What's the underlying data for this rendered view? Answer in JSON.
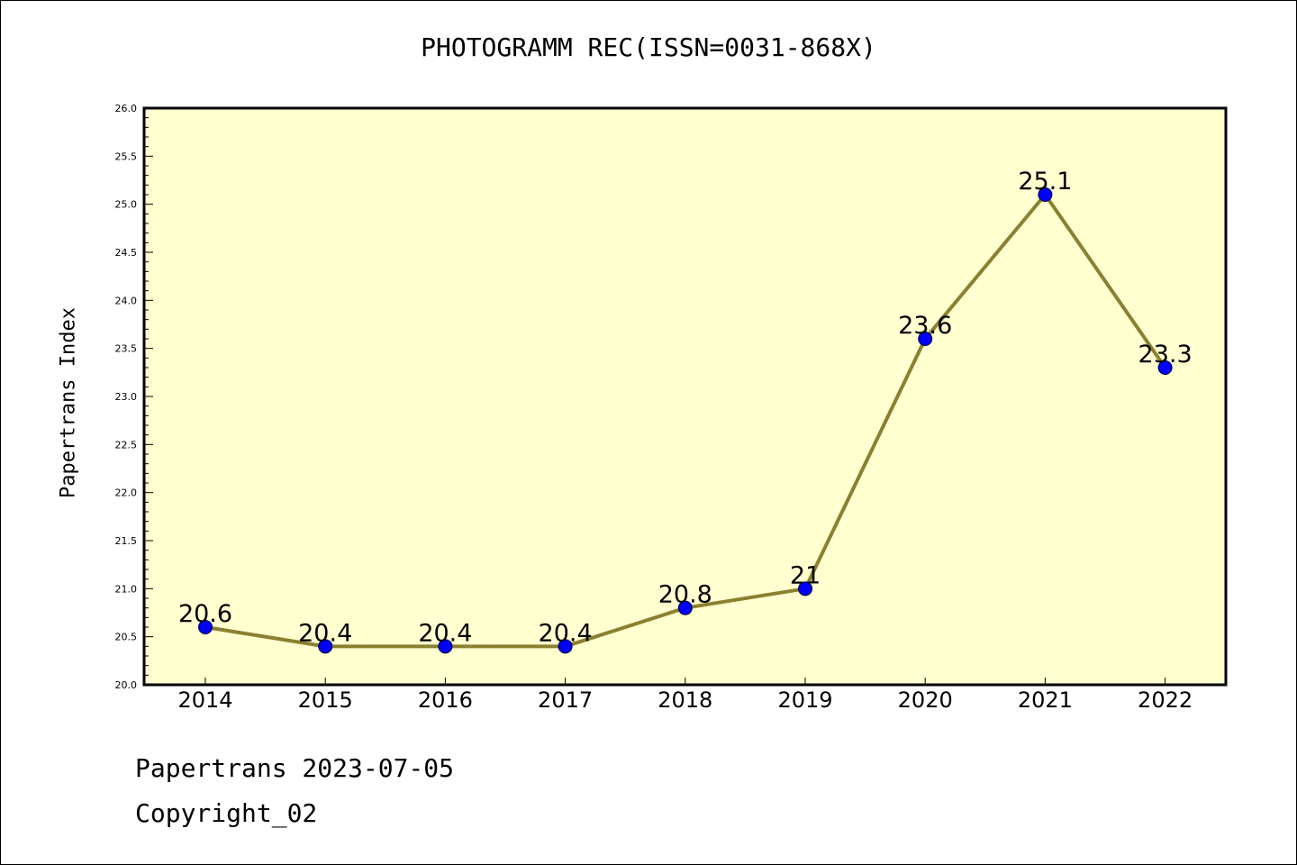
{
  "chart_data": {
    "type": "line",
    "title": "PHOTOGRAMM REC(ISSN=0031-868X)",
    "ylabel": "Papertrans Index",
    "xlabel": "",
    "categories": [
      "2014",
      "2015",
      "2016",
      "2017",
      "2018",
      "2019",
      "2020",
      "2021",
      "2022"
    ],
    "values": [
      20.6,
      20.4,
      20.4,
      20.4,
      20.8,
      21,
      23.6,
      25.1,
      23.3
    ],
    "data_labels": [
      "20.6",
      "20.4",
      "20.4",
      "20.4",
      "20.8",
      "21",
      "23.6",
      "25.1",
      "23.3"
    ],
    "ylim": [
      20.0,
      26.0
    ],
    "yticks": [
      "20.0",
      "20.5",
      "21.0",
      "21.5",
      "22.0",
      "22.5",
      "23.0",
      "23.5",
      "24.0",
      "24.5",
      "25.0",
      "25.5",
      "26.0"
    ],
    "grid": false,
    "colors": {
      "plot_background": "#ffffd0",
      "line": "#8b8030",
      "marker": "#0000ff"
    }
  },
  "footer": {
    "line1": "Papertrans 2023-07-05",
    "line2": "Copyright_02"
  }
}
